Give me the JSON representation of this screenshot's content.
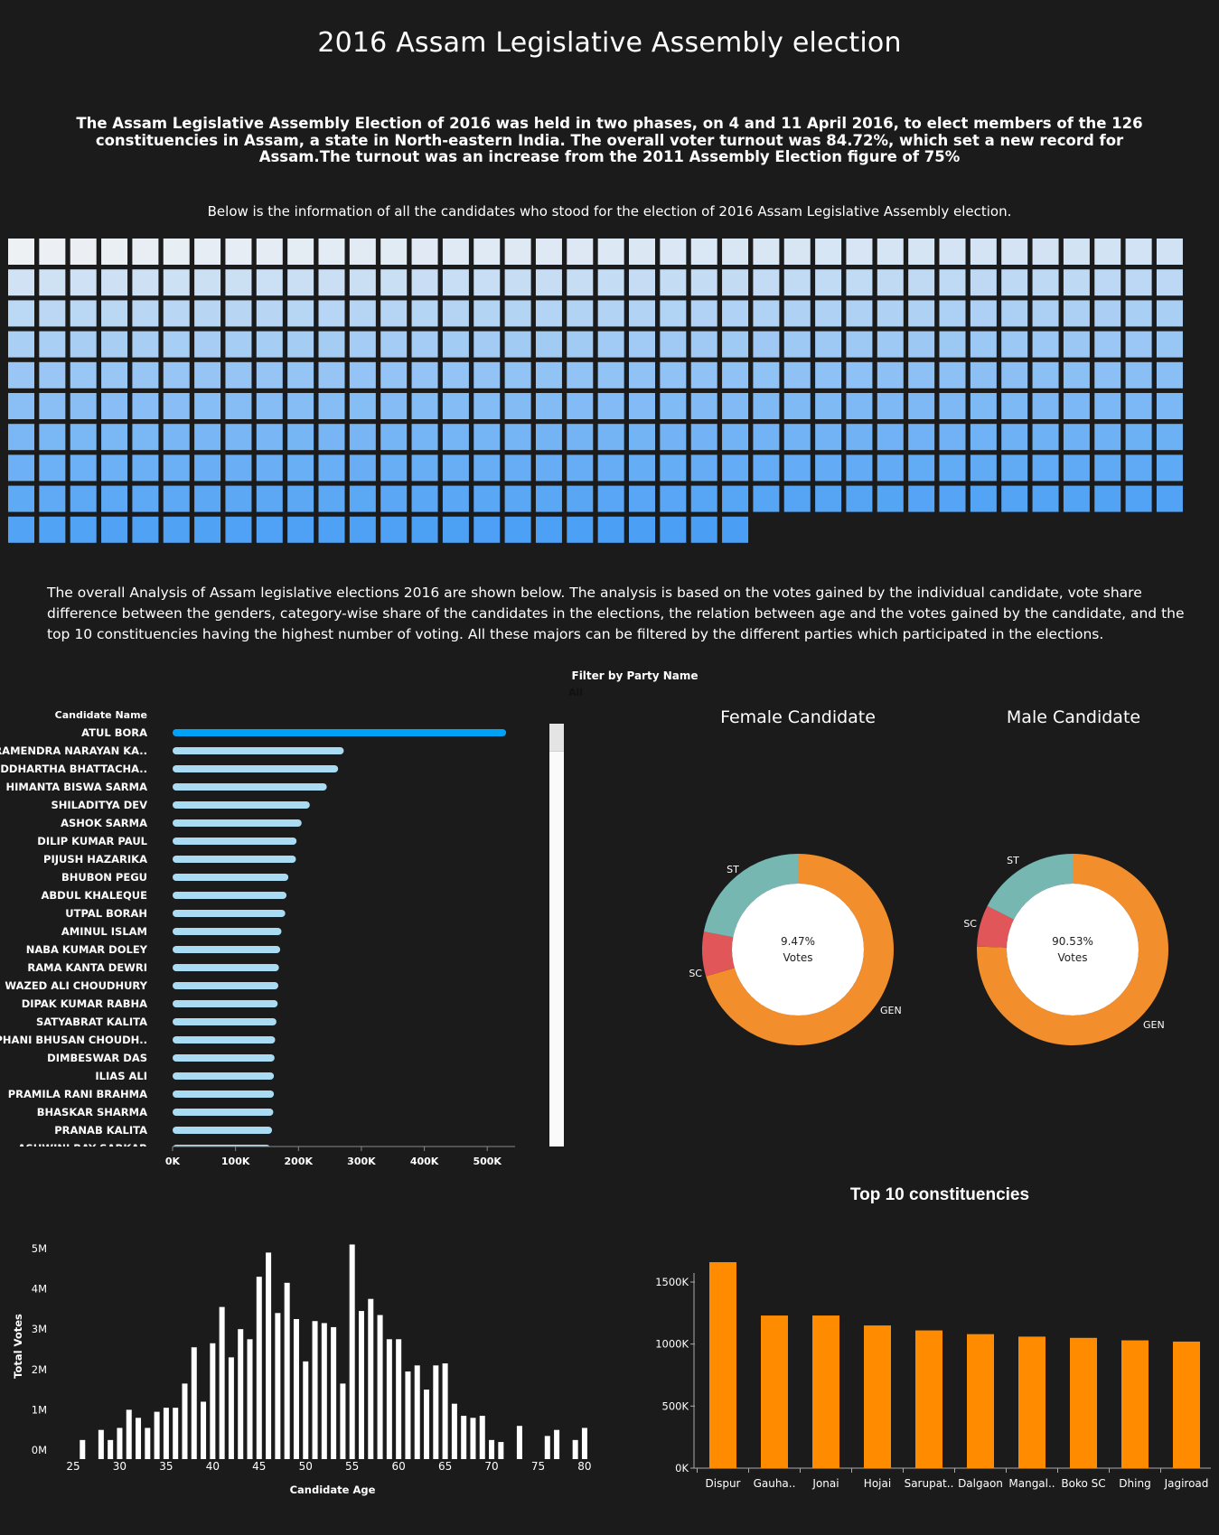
{
  "header": {
    "title": "2016 Assam Legislative Assembly election",
    "intro": "The Assam Legislative Assembly Election of 2016 was held in two phases, on 4 and 11 April 2016, to elect members of the 126 constituencies in Assam, a state in North-eastern India. The overall voter turnout was 84.72%, which set a new record for Assam.The turnout was an increase from the 2011 Assembly Election figure of 75%",
    "subtitle": "Below is the information of all the candidates who stood for the election of 2016 Assam Legislative Assembly election.",
    "analysis": "The overall Analysis of Assam legislative elections 2016 are shown below. The analysis is based on the votes gained by the individual candidate, vote share difference between the genders, category-wise share of the candidates in the elections, the relation between age and the votes gained by the candidate, and the top 10 constituencies having the highest number of voting. All these majors can be filtered by the different parties which participated in the elections."
  },
  "filter": {
    "label": "Filter by Party Name",
    "value": "All"
  },
  "colors": {
    "background": "#1b1b1b",
    "grid_light": "#eef1f4",
    "grid_dark": "#4a9ff5",
    "bar_top": "#00a2f5",
    "bar_other": "#a9dcf2",
    "gen": "#f28e2b",
    "sc": "#e15759",
    "st": "#76b7b2",
    "age_bars": "#ffffff",
    "top10": "#ff8c00"
  },
  "chart_data": [
    {
      "type": "heatmap",
      "title": "",
      "rows": 10,
      "columns": 38,
      "cell_count": 366,
      "note_scale": "light-to-dark blue gradient"
    },
    {
      "type": "bar",
      "orientation": "horizontal",
      "y_header": "Candidate Name",
      "categories": [
        "ATUL BORA",
        "RAMENDRA NARAYAN KA..",
        "SIDDHARTHA BHATTACHA..",
        "HIMANTA BISWA SARMA",
        "SHILADITYA DEV",
        "ASHOK SARMA",
        "DILIP KUMAR PAUL",
        "PIJUSH HAZARIKA",
        "BHUBON PEGU",
        "ABDUL KHALEQUE",
        "UTPAL BORAH",
        "AMINUL ISLAM",
        "NABA KUMAR DOLEY",
        "RAMA KANTA DEWRI",
        "WAZED ALI CHOUDHURY",
        "DIPAK KUMAR RABHA",
        "SATYABRAT KALITA",
        "PHANI BHUSAN CHOUDH..",
        "DIMBESWAR DAS",
        "ILIAS ALI",
        "PRAMILA RANI BRAHMA",
        "BHASKAR SHARMA",
        "PRANAB KALITA",
        "ASHWINI RAY SARKAR"
      ],
      "values": [
        530000,
        272000,
        263000,
        245000,
        218000,
        205000,
        197000,
        196000,
        184000,
        181000,
        179000,
        173000,
        171000,
        169000,
        168000,
        167000,
        165000,
        163000,
        162000,
        161000,
        161000,
        160000,
        158000,
        155000
      ],
      "x_ticks": [
        "0K",
        "100K",
        "200K",
        "300K",
        "400K",
        "500K"
      ],
      "xlim": [
        0,
        560000
      ]
    },
    {
      "type": "pie",
      "title": "Female Candidate",
      "center_value": "9.47%",
      "center_label": "Votes",
      "slices": [
        {
          "label": "GEN",
          "value": 70.5
        },
        {
          "label": "SC",
          "value": 7.5
        },
        {
          "label": "ST",
          "value": 22.0
        }
      ]
    },
    {
      "type": "pie",
      "title": "Male Candidate",
      "center_value": "90.53%",
      "center_label": "Votes",
      "slices": [
        {
          "label": "GEN",
          "value": 75.5
        },
        {
          "label": "SC",
          "value": 7.0
        },
        {
          "label": "ST",
          "value": 17.5
        }
      ]
    },
    {
      "type": "bar",
      "xlabel": "Candidate Age",
      "ylabel": "Total Votes",
      "x": [
        26,
        28,
        29,
        30,
        31,
        32,
        33,
        34,
        35,
        36,
        37,
        38,
        39,
        40,
        41,
        42,
        43,
        44,
        45,
        46,
        47,
        48,
        49,
        50,
        51,
        52,
        53,
        54,
        55,
        56,
        57,
        58,
        59,
        60,
        61,
        62,
        63,
        64,
        65,
        66,
        67,
        68,
        69,
        70,
        71,
        73,
        76,
        77,
        79,
        80
      ],
      "values": [
        0.25,
        0.5,
        0.25,
        0.55,
        1.0,
        0.8,
        0.55,
        0.95,
        1.05,
        1.05,
        1.65,
        2.55,
        1.2,
        2.65,
        3.55,
        2.3,
        3.0,
        2.75,
        4.3,
        4.9,
        3.4,
        4.15,
        3.25,
        2.2,
        3.2,
        3.15,
        3.05,
        1.65,
        5.1,
        3.45,
        3.75,
        3.35,
        2.75,
        2.75,
        1.95,
        2.1,
        1.5,
        2.1,
        2.15,
        1.15,
        0.85,
        0.8,
        0.85,
        0.25,
        0.2,
        0.6,
        0.35,
        0.5,
        0.25,
        0.55
      ],
      "x_ticks": [
        "25",
        "30",
        "35",
        "40",
        "45",
        "50",
        "55",
        "60",
        "65",
        "70",
        "75",
        "80"
      ],
      "y_ticks": [
        "0M",
        "1M",
        "2M",
        "3M",
        "4M",
        "5M"
      ],
      "xlim": [
        24,
        81
      ],
      "ylim": [
        0,
        5.5
      ]
    },
    {
      "type": "bar",
      "title": "Top 10 constituencies",
      "categories": [
        "Dispur",
        "Gauha..",
        "Jonai",
        "Hojai",
        "Sarupat..",
        "Dalgaon",
        "Mangal..",
        "Boko SC",
        "Dhing",
        "Jagiroad"
      ],
      "values": [
        1660,
        1230,
        1230,
        1150,
        1110,
        1080,
        1060,
        1050,
        1030,
        1020
      ],
      "y_ticks": [
        "0K",
        "500K",
        "1000K",
        "1500K"
      ],
      "ylim": [
        0,
        1800
      ]
    }
  ]
}
